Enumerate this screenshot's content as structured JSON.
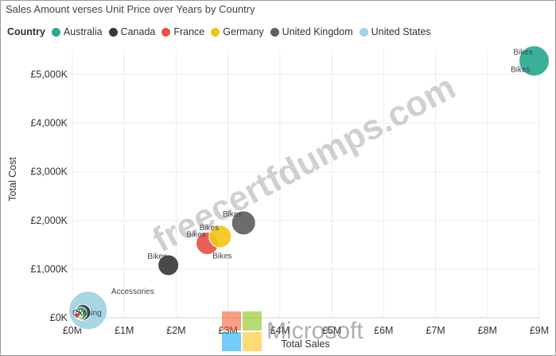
{
  "chart_data": {
    "type": "scatter",
    "title": "Sales Amount verses Unit Price over Years by Country",
    "xlabel": "Total Sales",
    "ylabel": "Total Cost",
    "xlim": [
      0,
      9000000
    ],
    "ylim": [
      0,
      5500000
    ],
    "xticks": [
      0,
      1000000,
      2000000,
      3000000,
      4000000,
      5000000,
      6000000,
      7000000,
      8000000,
      9000000
    ],
    "xtick_labels": [
      "£0M",
      "£1M",
      "£2M",
      "£3M",
      "£4M",
      "£5M",
      "£6M",
      "£7M",
      "£8M",
      "£9M"
    ],
    "yticks": [
      0,
      1000000,
      2000000,
      3000000,
      4000000,
      5000000
    ],
    "ytick_labels": [
      "£0K",
      "£1,000K",
      "£2,000K",
      "£3,000K",
      "£4,000K",
      "£5,000K"
    ],
    "grid": true,
    "legend_title": "Country",
    "legend_position": "top-left",
    "series": [
      {
        "name": "Australia",
        "color": "#2aa891"
      },
      {
        "name": "Canada",
        "color": "#3a3a3a"
      },
      {
        "name": "France",
        "color": "#e8534a"
      },
      {
        "name": "Germany",
        "color": "#f2c517"
      },
      {
        "name": "United Kingdom",
        "color": "#606060"
      },
      {
        "name": "United States",
        "color": "#9fd3e3"
      }
    ],
    "points": [
      {
        "series": "United States",
        "x": 300000,
        "y": 150000,
        "size": 48,
        "label": ""
      },
      {
        "series": "Canada",
        "x": 200000,
        "y": 110000,
        "size": 20,
        "label": ""
      },
      {
        "series": "Australia",
        "x": 160000,
        "y": 90000,
        "size": 16,
        "label": ""
      },
      {
        "series": "Germany",
        "x": 120000,
        "y": 70000,
        "size": 11,
        "label": ""
      },
      {
        "series": "France",
        "x": 90000,
        "y": 50000,
        "size": 7,
        "label": ""
      },
      {
        "series": "United Kingdom",
        "x": 100000,
        "y": 80000,
        "size": 9,
        "label": ""
      },
      {
        "series": "Canada",
        "x": 1850000,
        "y": 1080000,
        "size": 26,
        "label": "Bikes"
      },
      {
        "series": "France",
        "x": 2600000,
        "y": 1530000,
        "size": 28,
        "label": "Bikes"
      },
      {
        "series": "Germany",
        "x": 2850000,
        "y": 1670000,
        "size": 28,
        "label": "Bikes"
      },
      {
        "series": "United Kingdom",
        "x": 3300000,
        "y": 1950000,
        "size": 30,
        "label": "Bikes"
      },
      {
        "series": "Australia",
        "x": 8900000,
        "y": 5280000,
        "size": 38,
        "label": "Bikes"
      }
    ],
    "annotations": [
      {
        "text": "Bikes",
        "x": 8450000,
        "y": 5050000
      },
      {
        "text": "Bikes",
        "x": 2700000,
        "y": 1220000
      },
      {
        "text": "Accessories",
        "x": 750000,
        "y": 490000
      },
      {
        "text": "Clothing",
        "x": 0,
        "y": 50000
      }
    ]
  },
  "watermark": {
    "site_text": "freecertfdumps.com",
    "brand_text": "Microsoft",
    "brand_colors": [
      "#f25022",
      "#7fba00",
      "#00a4ef",
      "#ffb900"
    ]
  }
}
